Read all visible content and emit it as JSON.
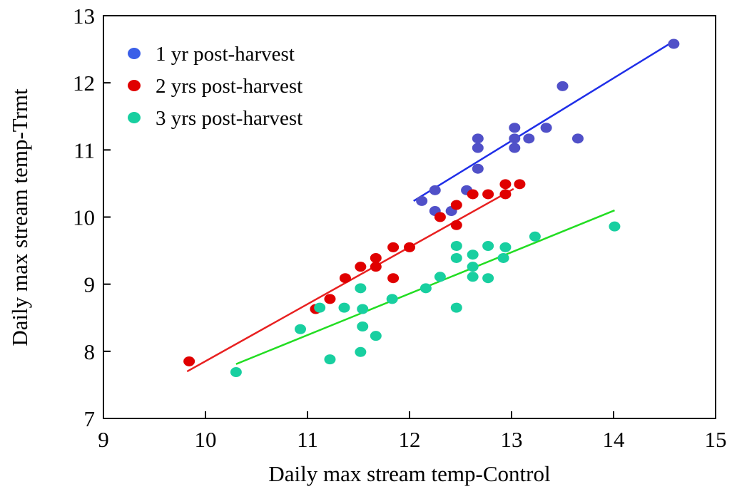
{
  "chart_data": {
    "type": "scatter",
    "x_label": "Daily max stream temp-Control",
    "y_label": "Daily max stream temp-Trmt",
    "xlim": [
      9,
      15
    ],
    "ylim": [
      7,
      13
    ],
    "xticks": [
      9,
      10,
      11,
      12,
      13,
      14,
      15
    ],
    "yticks": [
      7,
      8,
      9,
      10,
      11,
      12,
      13
    ],
    "legend": "upper-left",
    "series": [
      {
        "name": "1 yr post-harvest",
        "color": "#5050c8",
        "legend_color": "#3a5fe8",
        "trend_color": "#1f2ee8",
        "x": [
          12.12,
          12.25,
          12.25,
          12.41,
          12.56,
          12.67,
          12.67,
          12.67,
          13.03,
          13.03,
          13.03,
          13.17,
          13.34,
          13.5,
          13.65,
          14.59
        ],
        "y": [
          10.24,
          10.4,
          10.09,
          10.09,
          10.4,
          11.17,
          11.03,
          10.72,
          11.33,
          11.17,
          11.03,
          11.17,
          11.33,
          11.95,
          11.17,
          12.58
        ],
        "trend": {
          "x": [
            12.04,
            14.59
          ],
          "y": [
            10.24,
            12.62
          ]
        }
      },
      {
        "name": "2 yrs post-harvest",
        "color": "#e00000",
        "legend_color": "#e00000",
        "trend_color": "#e82020",
        "x": [
          9.84,
          11.08,
          11.22,
          11.37,
          11.52,
          11.67,
          11.67,
          11.84,
          11.84,
          12.0,
          12.3,
          12.46,
          12.46,
          12.62,
          12.77,
          12.94,
          12.94,
          13.08
        ],
        "y": [
          7.85,
          8.63,
          8.78,
          9.09,
          9.26,
          9.39,
          9.26,
          9.55,
          9.09,
          9.55,
          10.0,
          10.18,
          9.88,
          10.34,
          10.34,
          10.49,
          10.34,
          10.49
        ],
        "trend": {
          "x": [
            9.82,
            13.02
          ],
          "y": [
            7.7,
            10.42
          ]
        }
      },
      {
        "name": "3 yrs post-harvest",
        "color": "#18cfa0",
        "legend_color": "#18cfa0",
        "trend_color": "#22dd22",
        "x": [
          10.3,
          10.93,
          11.12,
          11.22,
          11.36,
          11.52,
          11.52,
          11.54,
          11.54,
          11.67,
          11.83,
          12.16,
          12.3,
          12.46,
          12.46,
          12.46,
          12.62,
          12.62,
          12.62,
          12.77,
          12.77,
          12.92,
          12.94,
          13.23,
          14.01
        ],
        "y": [
          7.69,
          8.33,
          8.65,
          7.88,
          8.65,
          8.94,
          7.99,
          8.63,
          8.37,
          8.23,
          8.78,
          8.94,
          9.11,
          8.65,
          9.57,
          9.39,
          9.11,
          9.26,
          9.44,
          9.57,
          9.09,
          9.39,
          9.55,
          9.71,
          9.86
        ],
        "trend": {
          "x": [
            10.3,
            14.01
          ],
          "y": [
            7.81,
            10.1
          ]
        }
      }
    ]
  }
}
